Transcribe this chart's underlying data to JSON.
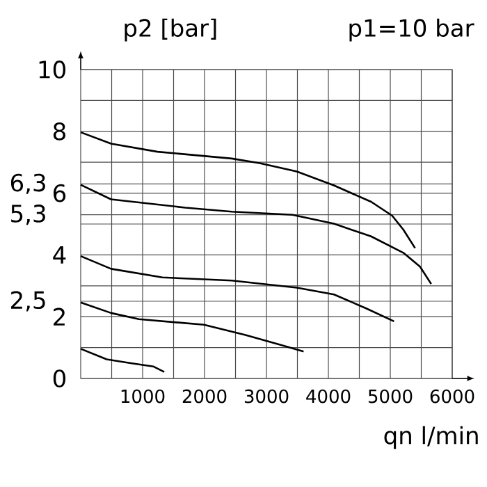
{
  "chart_data": {
    "type": "line",
    "title": "p1=10 bar",
    "ylabel": "p2 [bar]",
    "xlabel": "qn l/min",
    "xlim": [
      0,
      6000
    ],
    "ylim": [
      0,
      10
    ],
    "xticks": [
      {
        "value": 500,
        "label": null
      },
      1000,
      {
        "value": 1500,
        "label": null
      },
      2000,
      {
        "value": 2500,
        "label": null
      },
      3000,
      {
        "value": 3500,
        "label": null
      },
      4000,
      {
        "value": 4500,
        "label": null
      },
      5000,
      {
        "value": 5500,
        "label": null
      },
      6000
    ],
    "yticks": [
      0,
      {
        "value": 1,
        "label": null
      },
      2,
      {
        "value": 3,
        "label": null
      },
      4,
      {
        "value": 5,
        "label": null
      },
      6,
      {
        "value": 7,
        "label": null
      },
      8,
      {
        "value": 9,
        "label": null
      },
      10
    ],
    "grid": true,
    "ref_lines": [
      {
        "axis": "y",
        "value": 6.3,
        "label": "6,3"
      },
      {
        "axis": "y",
        "value": 5.3,
        "label": "5,3"
      },
      {
        "axis": "y",
        "value": 2.5,
        "label": "2,5"
      }
    ],
    "series": [
      {
        "color": "#000000",
        "x": [
          0,
          490,
          1240,
          2440,
          2890,
          3490,
          4090,
          4690,
          5030,
          5210,
          5400
        ],
        "values": [
          7.97,
          7.6,
          7.34,
          7.12,
          6.97,
          6.7,
          6.25,
          5.72,
          5.27,
          4.82,
          4.22
        ]
      },
      {
        "color": "#000000",
        "x": [
          0,
          490,
          1690,
          2440,
          3420,
          4090,
          4690,
          5210,
          5480,
          5660
        ],
        "values": [
          6.27,
          5.8,
          5.53,
          5.4,
          5.3,
          5.01,
          4.6,
          4.07,
          3.62,
          3.06
        ]
      },
      {
        "color": "#000000",
        "x": [
          0,
          490,
          1320,
          2440,
          3490,
          4090,
          4610,
          5060
        ],
        "values": [
          3.96,
          3.55,
          3.27,
          3.17,
          2.94,
          2.72,
          2.27,
          1.85
        ]
      },
      {
        "color": "#000000",
        "x": [
          0,
          490,
          940,
          1990,
          2660,
          3190,
          3600
        ],
        "values": [
          2.46,
          2.12,
          1.92,
          1.74,
          1.41,
          1.11,
          0.87
        ]
      },
      {
        "color": "#000000",
        "x": [
          0,
          420,
          790,
          1170,
          1350
        ],
        "values": [
          0.96,
          0.62,
          0.5,
          0.39,
          0.21
        ]
      }
    ]
  }
}
